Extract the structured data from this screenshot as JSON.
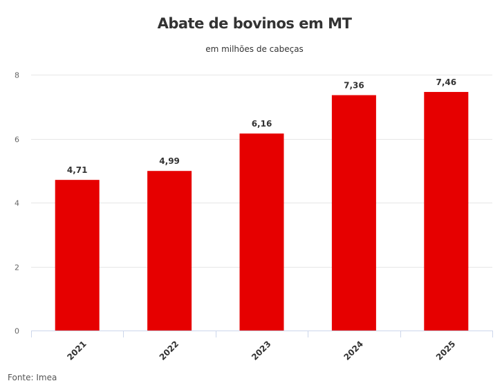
{
  "title": "Abate de bovinos em MT",
  "subtitle": "em milhões de cabeças",
  "source": "Fonte: Imea",
  "colors": {
    "bar": "#e60000",
    "grid": "#e6e6e6",
    "axis": "#ccd6eb",
    "text": "#333333",
    "tick": "#666666"
  },
  "chart_data": {
    "type": "bar",
    "title": "Abate de bovinos em MT",
    "subtitle": "em milhões de cabeças",
    "categories": [
      "2021",
      "2022",
      "2023",
      "2024",
      "2025"
    ],
    "values": [
      4.71,
      4.99,
      6.16,
      7.36,
      7.46
    ],
    "value_labels": [
      "4,71",
      "4,99",
      "6,16",
      "7,36",
      "7,46"
    ],
    "xlabel": "",
    "ylabel": "",
    "ylim": [
      0,
      8
    ],
    "yticks": [
      0,
      2,
      4,
      6,
      8
    ],
    "grid": true,
    "legend": false
  }
}
